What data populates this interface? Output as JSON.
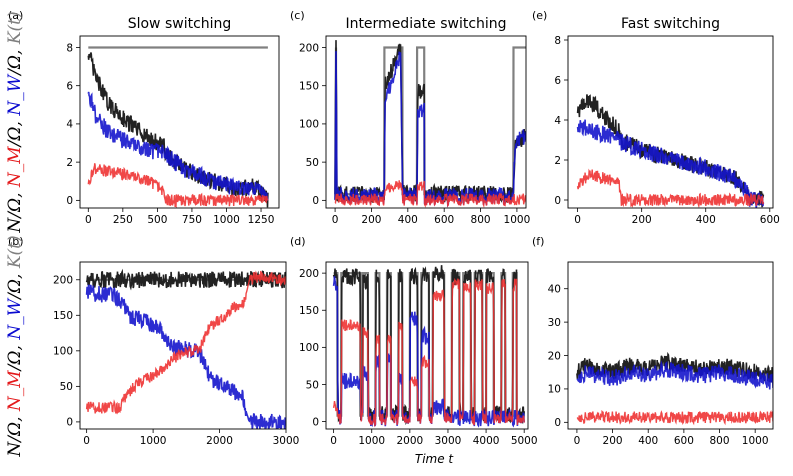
{
  "figure": {
    "xlabel": "Time t",
    "ylabel_parts": [
      {
        "text": "N",
        "color": "#000000"
      },
      {
        "text": "/Ω, ",
        "color": "#000000"
      },
      {
        "text": "N_M",
        "color": "#e41a1c"
      },
      {
        "text": "/Ω, ",
        "color": "#000000"
      },
      {
        "text": "N_W",
        "color": "#0a0ad0"
      },
      {
        "text": "/Ω, ",
        "color": "#000000"
      },
      {
        "text": "K(t)",
        "color": "#7f7f7f"
      }
    ],
    "colors": {
      "N": "#222222",
      "N_M": "#ee3333",
      "N_W": "#1515cc",
      "K": "#808080"
    }
  },
  "chart_data": [
    {
      "panel": "(a)",
      "title": "Slow switching",
      "type": "line",
      "xlim": [
        -60,
        1380
      ],
      "ylim": [
        -0.4,
        8.6
      ],
      "xticks": [
        0,
        250,
        500,
        750,
        1000,
        1250
      ],
      "yticks": [
        0,
        2,
        4,
        6,
        8
      ],
      "series": [
        {
          "key": "K",
          "x": [
            0,
            1300
          ],
          "y": [
            8,
            8
          ]
        },
        {
          "key": "N",
          "x": [
            0,
            50,
            150,
            300,
            450,
            550,
            560,
            700,
            900,
            1100,
            1200,
            1250,
            1300
          ],
          "y": [
            7.8,
            6.5,
            5.0,
            4.0,
            3.2,
            2.8,
            2.4,
            1.6,
            1.0,
            0.6,
            0.7,
            0.4,
            0
          ]
        },
        {
          "key": "N_W",
          "x": [
            0,
            50,
            150,
            300,
            450,
            550,
            560,
            700,
            900,
            1100,
            1200,
            1250,
            1300
          ],
          "y": [
            5.8,
            4.5,
            3.5,
            3.0,
            2.6,
            2.5,
            2.4,
            1.6,
            1.0,
            0.6,
            0.7,
            0.4,
            0
          ]
        },
        {
          "key": "N_M",
          "x": [
            0,
            50,
            150,
            300,
            450,
            550,
            560,
            1300
          ],
          "y": [
            1.0,
            1.7,
            1.5,
            1.3,
            1.0,
            0.4,
            0,
            0
          ]
        }
      ]
    },
    {
      "panel": "(c)",
      "title": "Intermediate switching",
      "type": "line",
      "xlim": [
        -50,
        1050
      ],
      "ylim": [
        -10,
        215
      ],
      "xticks": [
        0,
        200,
        400,
        600,
        800,
        1000
      ],
      "yticks": [
        0,
        50,
        100,
        150,
        200
      ],
      "series": [
        {
          "key": "K",
          "x": [
            0,
            5,
            6,
            270,
            271,
            370,
            371,
            450,
            451,
            490,
            491,
            980,
            981,
            1050
          ],
          "y": [
            8,
            200,
            8,
            8,
            200,
            200,
            8,
            8,
            200,
            200,
            8,
            8,
            200,
            200
          ]
        },
        {
          "key": "N",
          "x": [
            0,
            5,
            10,
            270,
            275,
            300,
            330,
            360,
            372,
            450,
            455,
            490,
            492,
            980,
            990,
            1000,
            1050
          ],
          "y": [
            6,
            200,
            8,
            8,
            150,
            165,
            180,
            200,
            10,
            10,
            140,
            150,
            8,
            8,
            75,
            80,
            82
          ]
        },
        {
          "key": "N_W",
          "x": [
            0,
            5,
            10,
            270,
            275,
            300,
            330,
            360,
            372,
            450,
            455,
            490,
            492,
            980,
            990,
            1000,
            1050
          ],
          "y": [
            5,
            190,
            6,
            6,
            135,
            150,
            170,
            190,
            6,
            6,
            115,
            120,
            5,
            5,
            75,
            80,
            82
          ]
        },
        {
          "key": "N_M",
          "x": [
            0,
            270,
            275,
            370,
            372,
            450,
            455,
            490,
            492,
            1050
          ],
          "y": [
            1,
            1,
            18,
            20,
            1,
            1,
            18,
            20,
            1,
            1
          ]
        }
      ]
    },
    {
      "panel": "(e)",
      "title": "Fast switching",
      "type": "line",
      "xlim": [
        -30,
        610
      ],
      "ylim": [
        -0.4,
        8.2
      ],
      "xticks": [
        0,
        200,
        400,
        600
      ],
      "yticks": [
        0,
        2,
        4,
        6,
        8
      ],
      "series": [
        {
          "key": "N",
          "x": [
            0,
            40,
            80,
            130,
            135,
            200,
            300,
            400,
            500,
            530,
            540,
            580
          ],
          "y": [
            4.5,
            5.0,
            4.2,
            3.5,
            3.0,
            2.5,
            2.0,
            1.6,
            1.0,
            0.3,
            0,
            0
          ]
        },
        {
          "key": "N_W",
          "x": [
            0,
            40,
            80,
            130,
            135,
            200,
            300,
            400,
            500,
            530,
            540,
            580
          ],
          "y": [
            3.8,
            3.5,
            3.3,
            3.0,
            2.9,
            2.5,
            2.0,
            1.6,
            1.0,
            0.3,
            0,
            0
          ]
        },
        {
          "key": "N_M",
          "x": [
            0,
            40,
            80,
            130,
            135,
            580
          ],
          "y": [
            0.8,
            1.3,
            1.1,
            0.8,
            0,
            0
          ]
        }
      ]
    },
    {
      "panel": "(b)",
      "title": "",
      "type": "line",
      "xlim": [
        -100,
        3000
      ],
      "ylim": [
        -10,
        225
      ],
      "xticks": [
        0,
        1000,
        2000,
        3000
      ],
      "yticks": [
        0,
        50,
        100,
        150,
        200
      ],
      "series": [
        {
          "key": "K",
          "x": [
            0,
            3000
          ],
          "y": [
            200,
            200
          ]
        },
        {
          "key": "N",
          "x": [
            0,
            3000
          ],
          "y": [
            200,
            200
          ]
        },
        {
          "key": "N_W",
          "x": [
            0,
            400,
            500,
            650,
            900,
            1100,
            1300,
            1500,
            1700,
            1850,
            1950,
            2100,
            2200,
            2350,
            2450,
            3000
          ],
          "y": [
            182,
            178,
            172,
            150,
            140,
            130,
            105,
            102,
            98,
            65,
            55,
            52,
            42,
            35,
            0,
            0
          ]
        },
        {
          "key": "N_M",
          "x": [
            0,
            500,
            550,
            700,
            900,
            1100,
            1300,
            1500,
            1700,
            1850,
            1950,
            2100,
            2200,
            2350,
            2450,
            2600,
            3000
          ],
          "y": [
            20,
            20,
            30,
            50,
            60,
            70,
            90,
            98,
            102,
            135,
            140,
            150,
            160,
            165,
            200,
            205,
            200
          ]
        }
      ]
    },
    {
      "panel": "(d)",
      "title": "",
      "type": "line",
      "xlim": [
        -200,
        5100
      ],
      "ylim": [
        -10,
        215
      ],
      "xticks": [
        0,
        1000,
        2000,
        3000,
        4000,
        5000
      ],
      "yticks": [
        0,
        50,
        100,
        150,
        200
      ],
      "series": [
        {
          "key": "K",
          "x": [
            0,
            100,
            101,
            200,
            201,
            700,
            701,
            760,
            761,
            900,
            901,
            1100,
            1101,
            1200,
            1201,
            1400,
            1401,
            1500,
            1501,
            1700,
            1701,
            1800,
            1801,
            2000,
            2001,
            2200,
            2201,
            2300,
            2301,
            2500,
            2501,
            2600,
            2601,
            2900,
            2901,
            3100,
            3101,
            3300,
            3301,
            3400,
            3401,
            3600,
            3601,
            3700,
            3701,
            3900,
            3901,
            4000,
            4001,
            4200,
            4201,
            4400,
            4401,
            4500,
            4501,
            4700,
            4701,
            4800,
            4801,
            5000
          ],
          "y": [
            200,
            200,
            8,
            8,
            200,
            200,
            8,
            8,
            200,
            200,
            8,
            8,
            200,
            200,
            8,
            8,
            200,
            200,
            8,
            8,
            200,
            200,
            8,
            8,
            200,
            200,
            8,
            8,
            200,
            200,
            8,
            8,
            200,
            200,
            8,
            8,
            200,
            200,
            8,
            8,
            200,
            200,
            8,
            8,
            200,
            200,
            8,
            8,
            200,
            200,
            8,
            8,
            200,
            200,
            8,
            8,
            200,
            200,
            8,
            8
          ]
        },
        {
          "key": "N",
          "x": [
            0,
            100,
            110,
            200,
            210,
            700,
            710,
            760,
            770,
            900,
            910,
            1100,
            1110,
            1200,
            1210,
            1400,
            1410,
            1500,
            1510,
            1700,
            1710,
            1800,
            1810,
            2000,
            2010,
            2200,
            2210,
            2300,
            2310,
            2500,
            2510,
            2600,
            2610,
            2900,
            2910,
            3100,
            3110,
            3300,
            3310,
            3400,
            3410,
            3600,
            3610,
            3700,
            3710,
            3900,
            3910,
            4000,
            4010,
            4200,
            4210,
            4400,
            4410,
            4500,
            4510,
            4700,
            4710,
            4800,
            4810,
            5000
          ],
          "y": [
            200,
            200,
            10,
            10,
            195,
            195,
            10,
            10,
            190,
            190,
            10,
            10,
            195,
            195,
            10,
            10,
            195,
            195,
            10,
            10,
            195,
            195,
            10,
            10,
            195,
            195,
            10,
            10,
            195,
            195,
            10,
            10,
            200,
            200,
            10,
            10,
            195,
            195,
            10,
            10,
            195,
            195,
            10,
            10,
            195,
            195,
            10,
            10,
            195,
            195,
            10,
            10,
            195,
            195,
            10,
            10,
            195,
            195,
            10,
            10
          ]
        },
        {
          "key": "N_W",
          "x": [
            0,
            100,
            110,
            200,
            210,
            700,
            710,
            760,
            770,
            900,
            910,
            1100,
            1110,
            1200,
            1210,
            1400,
            1410,
            1500,
            1510,
            1700,
            1710,
            1800,
            1810,
            2000,
            2010,
            2200,
            2210,
            2300,
            2310,
            2500,
            2510,
            2600,
            2610,
            2900,
            2910,
            5000
          ],
          "y": [
            185,
            185,
            5,
            5,
            55,
            55,
            5,
            5,
            65,
            65,
            5,
            5,
            80,
            80,
            5,
            5,
            82,
            82,
            5,
            5,
            60,
            60,
            5,
            5,
            140,
            140,
            5,
            5,
            115,
            115,
            5,
            5,
            20,
            20,
            5,
            5
          ]
        },
        {
          "key": "N_M",
          "x": [
            0,
            100,
            110,
            200,
            210,
            700,
            710,
            760,
            770,
            900,
            910,
            1100,
            1110,
            1200,
            1210,
            1400,
            1410,
            1500,
            1510,
            1700,
            1710,
            1800,
            1810,
            2000,
            2010,
            2200,
            2210,
            2300,
            2310,
            2500,
            2510,
            2600,
            2610,
            2900,
            2910,
            3100,
            3110,
            3300,
            3310,
            3400,
            3410,
            3600,
            3610,
            3700,
            3710,
            3900,
            3910,
            4000,
            4010,
            4200,
            4210,
            4400,
            4410,
            4500,
            4510,
            4700,
            4710,
            4800,
            4810,
            5000
          ],
          "y": [
            20,
            20,
            3,
            3,
            130,
            130,
            3,
            3,
            120,
            120,
            3,
            3,
            110,
            110,
            3,
            3,
            110,
            110,
            3,
            3,
            130,
            130,
            3,
            3,
            55,
            55,
            3,
            3,
            80,
            80,
            3,
            3,
            170,
            170,
            3,
            3,
            185,
            185,
            3,
            3,
            180,
            180,
            3,
            3,
            185,
            185,
            3,
            3,
            180,
            180,
            3,
            3,
            185,
            185,
            3,
            3,
            185,
            185,
            3,
            3
          ]
        }
      ]
    },
    {
      "panel": "(f)",
      "title": "",
      "type": "line",
      "xlim": [
        -50,
        1100
      ],
      "ylim": [
        -2,
        48
      ],
      "xticks": [
        0,
        200,
        400,
        600,
        800,
        1000
      ],
      "yticks": [
        0,
        10,
        20,
        30,
        40
      ],
      "series": [
        {
          "key": "N",
          "x": [
            0,
            50,
            100,
            200,
            300,
            400,
            500,
            600,
            700,
            800,
            900,
            1000,
            1100
          ],
          "y": [
            15,
            17,
            16,
            15,
            17,
            16,
            18,
            17,
            16,
            17,
            16,
            15,
            14
          ]
        },
        {
          "key": "N_W",
          "x": [
            0,
            50,
            100,
            200,
            300,
            400,
            500,
            600,
            700,
            800,
            900,
            1000,
            1100
          ],
          "y": [
            13,
            15,
            14,
            13,
            15,
            14,
            16,
            15,
            14,
            15,
            14,
            13,
            12
          ]
        },
        {
          "key": "N_M",
          "x": [
            0,
            1100
          ],
          "y": [
            1.5,
            1.5
          ]
        }
      ]
    }
  ]
}
